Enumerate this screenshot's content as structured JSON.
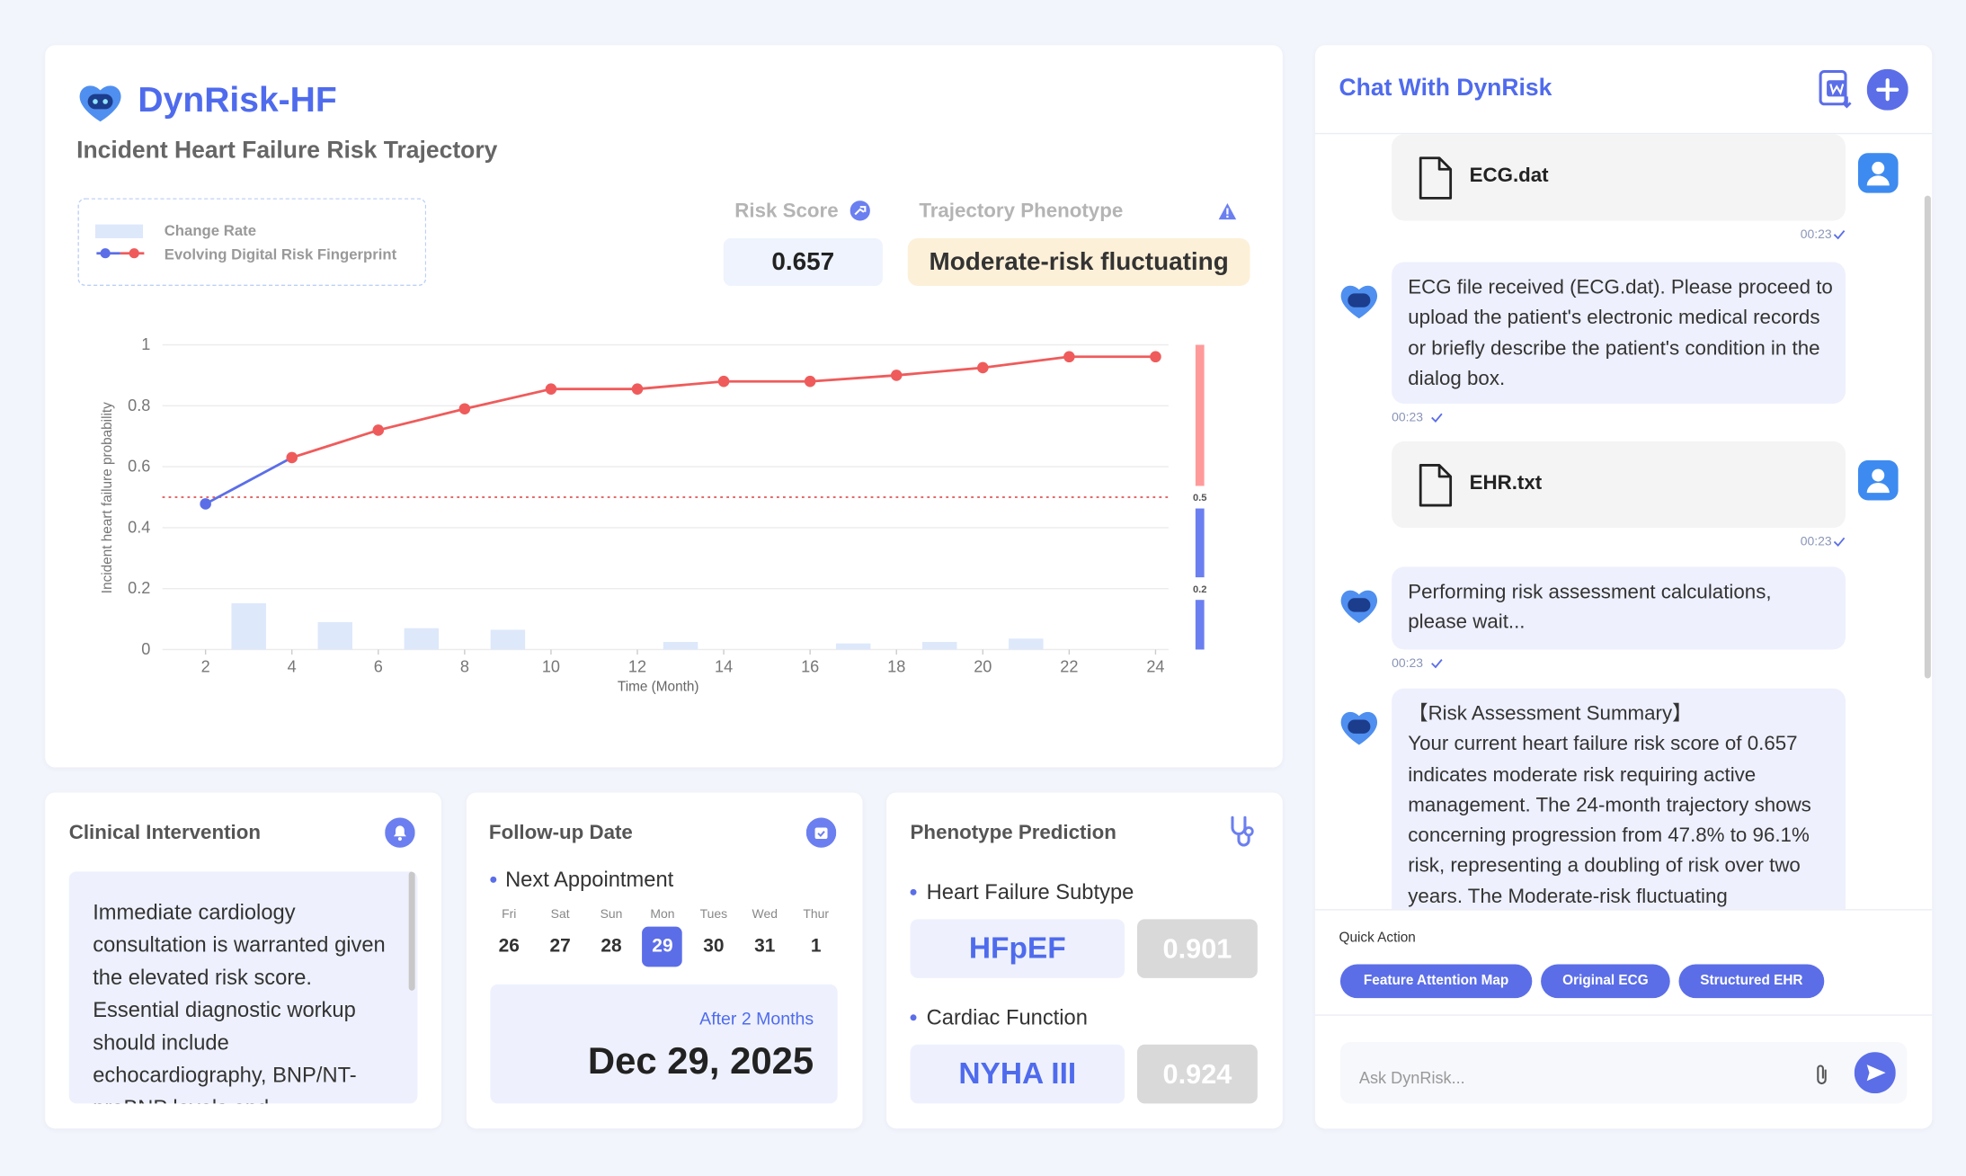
{
  "header": {
    "title": "DynRisk-HF",
    "subtitle": "Incident Heart Failure Risk Trajectory"
  },
  "risk_score": {
    "label": "Risk Score",
    "value": 0.657
  },
  "trajectory_phenotype": {
    "label": "Trajectory Phenotype",
    "value": "Moderate-risk fluctuating"
  },
  "chart_data": {
    "type": "line",
    "xlabel": "Time (Month)",
    "ylabel": "Incident heart failure probability",
    "xlim": [
      1,
      24.3
    ],
    "ylim": [
      0,
      1
    ],
    "xticks": [
      2,
      4,
      6,
      8,
      10,
      12,
      14,
      16,
      18,
      20,
      22,
      24
    ],
    "yticks": [
      0,
      0.2,
      0.4,
      0.6,
      0.8,
      1
    ],
    "grid": true,
    "threshold": 0.5,
    "threshold_color": "#e05555",
    "series": [
      {
        "name": "Change Rate",
        "type": "bar",
        "color": "#dde8fb",
        "x": [
          3,
          5,
          7,
          9,
          11,
          13,
          15,
          17,
          19,
          21,
          23
        ],
        "values": [
          0.152,
          0.09,
          0.07,
          0.065,
          0,
          0.025,
          0,
          0.02,
          0.025,
          0.036,
          0
        ]
      },
      {
        "name": "Evolving Digital Risk Fingerprint",
        "type": "line",
        "color": "#ef5b5b",
        "below_threshold_color": "#5b6ee8",
        "x": [
          2,
          4,
          6,
          8,
          10,
          12,
          14,
          16,
          18,
          20,
          22,
          24
        ],
        "values": [
          0.478,
          0.63,
          0.72,
          0.79,
          0.855,
          0.855,
          0.88,
          0.88,
          0.9,
          0.925,
          0.961,
          0.961
        ]
      }
    ],
    "colorbar": {
      "ticks": [
        0.2,
        0.5
      ],
      "colors": [
        "#6b7ff0",
        "#6b7ff0",
        "#ff9a9a"
      ]
    }
  },
  "clinical_intervention": {
    "title": "Clinical Intervention",
    "text": "Immediate cardiology consultation is warranted given the elevated risk score. Essential diagnostic workup should include echocardiography, BNP/NT-proBNP levels and"
  },
  "follow_up": {
    "title": "Follow-up Date",
    "subtitle": "Next Appointment",
    "days": [
      {
        "weekday": "Fri",
        "day": 26
      },
      {
        "weekday": "Sat",
        "day": 27
      },
      {
        "weekday": "Sun",
        "day": 28
      },
      {
        "weekday": "Mon",
        "day": 29
      },
      {
        "weekday": "Tues",
        "day": 30
      },
      {
        "weekday": "Wed",
        "day": 31
      },
      {
        "weekday": "Thur",
        "day": 1
      }
    ],
    "selected": 3,
    "relative": "After 2 Months",
    "date": "Dec 29, 2025"
  },
  "phenotype_prediction": {
    "title": "Phenotype Prediction",
    "items": [
      {
        "label": "Heart Failure Subtype",
        "value": "HFpEF",
        "score": 0.901
      },
      {
        "label": "Cardiac Function",
        "value": "NYHA III",
        "score": 0.924
      }
    ]
  },
  "chat": {
    "title": "Chat With DynRisk",
    "messages": [
      {
        "file": "ECG.dat",
        "time": "00:23"
      },
      {
        "text": "ECG file received (ECG.dat). Please proceed to upload the patient's electronic medical records or briefly describe the patient's condition in the dialog box.",
        "time": "00:23"
      },
      {
        "file": "EHR.txt",
        "time": "00:23"
      },
      {
        "text": "Performing risk assessment calculations, please wait...",
        "time": "00:23"
      },
      {
        "heading": "【Risk Assessment Summary】",
        "text": "Your current heart failure risk score of 0.657 indicates moderate risk requiring active management. The 24-month trajectory shows concerning progression from 47.8% to 96.1% risk, representing a doubling of risk over two years. The Moderate-risk fluctuating"
      }
    ],
    "quick_action": {
      "title": "Quick Action",
      "buttons": [
        "Feature Attention Map",
        "Original ECG",
        "Structured EHR"
      ]
    },
    "input_placeholder": "Ask DynRisk..."
  }
}
